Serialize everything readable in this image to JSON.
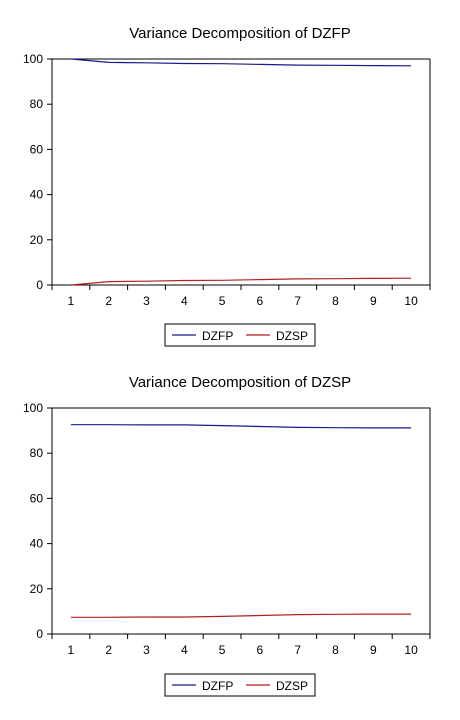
{
  "chart_data": [
    {
      "type": "line",
      "title": "Variance Decomposition of DZFP",
      "xlabel": "",
      "ylabel": "",
      "x": [
        1,
        2,
        3,
        4,
        5,
        6,
        7,
        8,
        9,
        10
      ],
      "xlim": [
        0.5,
        10.5
      ],
      "ylim": [
        0,
        100
      ],
      "yticks": [
        0,
        20,
        40,
        60,
        80,
        100
      ],
      "grid": false,
      "legend": "bottom-center",
      "series": [
        {
          "name": "DZFP",
          "color": "#1a1a8c",
          "values": [
            100.0,
            98.5,
            98.3,
            98.0,
            97.9,
            97.6,
            97.3,
            97.2,
            97.1,
            97.0
          ]
        },
        {
          "name": "DZSP",
          "color": "#b22222",
          "values": [
            0.0,
            1.5,
            1.7,
            2.0,
            2.1,
            2.4,
            2.7,
            2.8,
            2.9,
            3.0
          ]
        }
      ]
    },
    {
      "type": "line",
      "title": "Variance Decomposition of DZSP",
      "xlabel": "",
      "ylabel": "",
      "x": [
        1,
        2,
        3,
        4,
        5,
        6,
        7,
        8,
        9,
        10
      ],
      "xlim": [
        0.5,
        10.5
      ],
      "ylim": [
        0,
        100
      ],
      "yticks": [
        0,
        20,
        40,
        60,
        80,
        100
      ],
      "grid": false,
      "legend": "bottom-center",
      "series": [
        {
          "name": "DZFP",
          "color": "#1a1a8c",
          "values": [
            92.6,
            92.6,
            92.5,
            92.5,
            92.2,
            91.8,
            91.4,
            91.3,
            91.2,
            91.2
          ]
        },
        {
          "name": "DZSP",
          "color": "#b22222",
          "values": [
            7.4,
            7.4,
            7.5,
            7.5,
            7.8,
            8.2,
            8.6,
            8.7,
            8.8,
            8.8
          ]
        }
      ]
    }
  ]
}
